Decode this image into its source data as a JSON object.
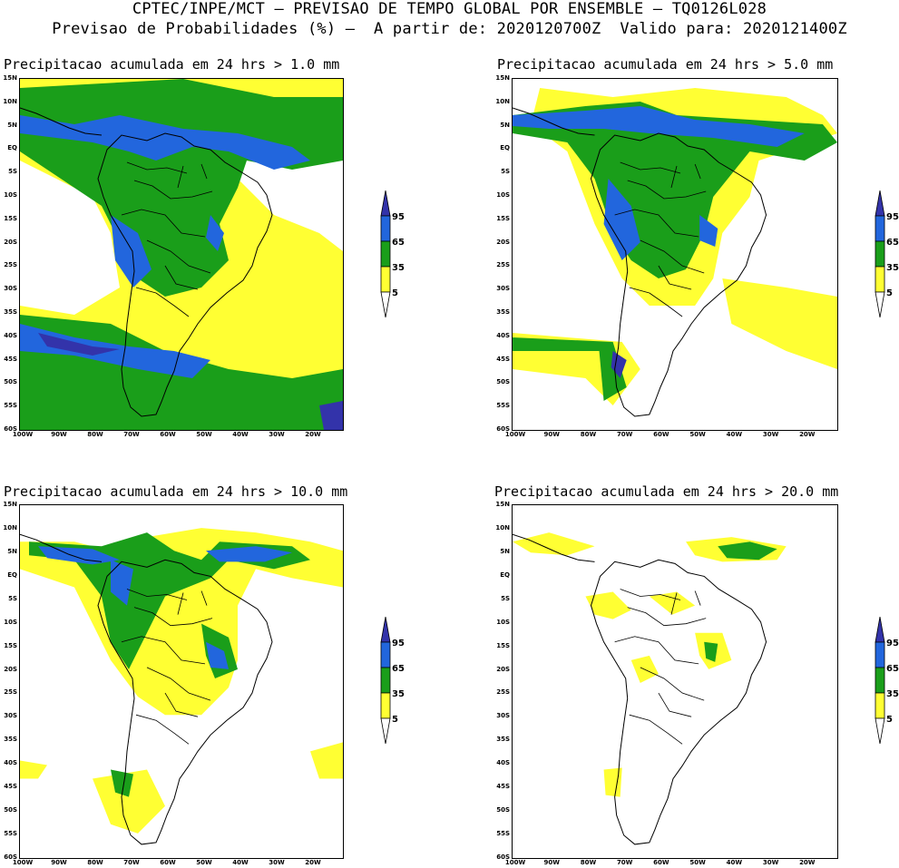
{
  "header": {
    "line1": "CPTEC/INPE/MCT – PREVISAO DE TEMPO GLOBAL POR ENSEMBLE – TQ0126L028",
    "line2": "Previsao de Probabilidades (%) –  A partir de: 2020120700Z  Valido para: 2020121400Z"
  },
  "colors": {
    "yellow": "#ffff33",
    "green": "#1a9e1a",
    "blue": "#2266dd",
    "navy": "#3333aa"
  },
  "axes": {
    "lat_labels": [
      "15N",
      "10N",
      "5N",
      "EQ",
      "5S",
      "10S",
      "15S",
      "20S",
      "25S",
      "30S",
      "35S",
      "40S",
      "45S",
      "50S",
      "55S",
      "60S"
    ],
    "lon_labels": [
      "100W",
      "90W",
      "80W",
      "70W",
      "60W",
      "50W",
      "40W",
      "30W",
      "20W"
    ]
  },
  "legend": {
    "labels": [
      "95",
      "65",
      "35",
      "5"
    ]
  },
  "panels": [
    {
      "title": "Precipitacao acumulada em 24 hrs > 1.0 mm"
    },
    {
      "title": "Precipitacao acumulada em 24 hrs > 5.0 mm"
    },
    {
      "title": "Precipitacao acumulada em 24 hrs > 10.0 mm"
    },
    {
      "title": "Precipitacao acumulada em 24 hrs > 20.0 mm"
    }
  ]
}
